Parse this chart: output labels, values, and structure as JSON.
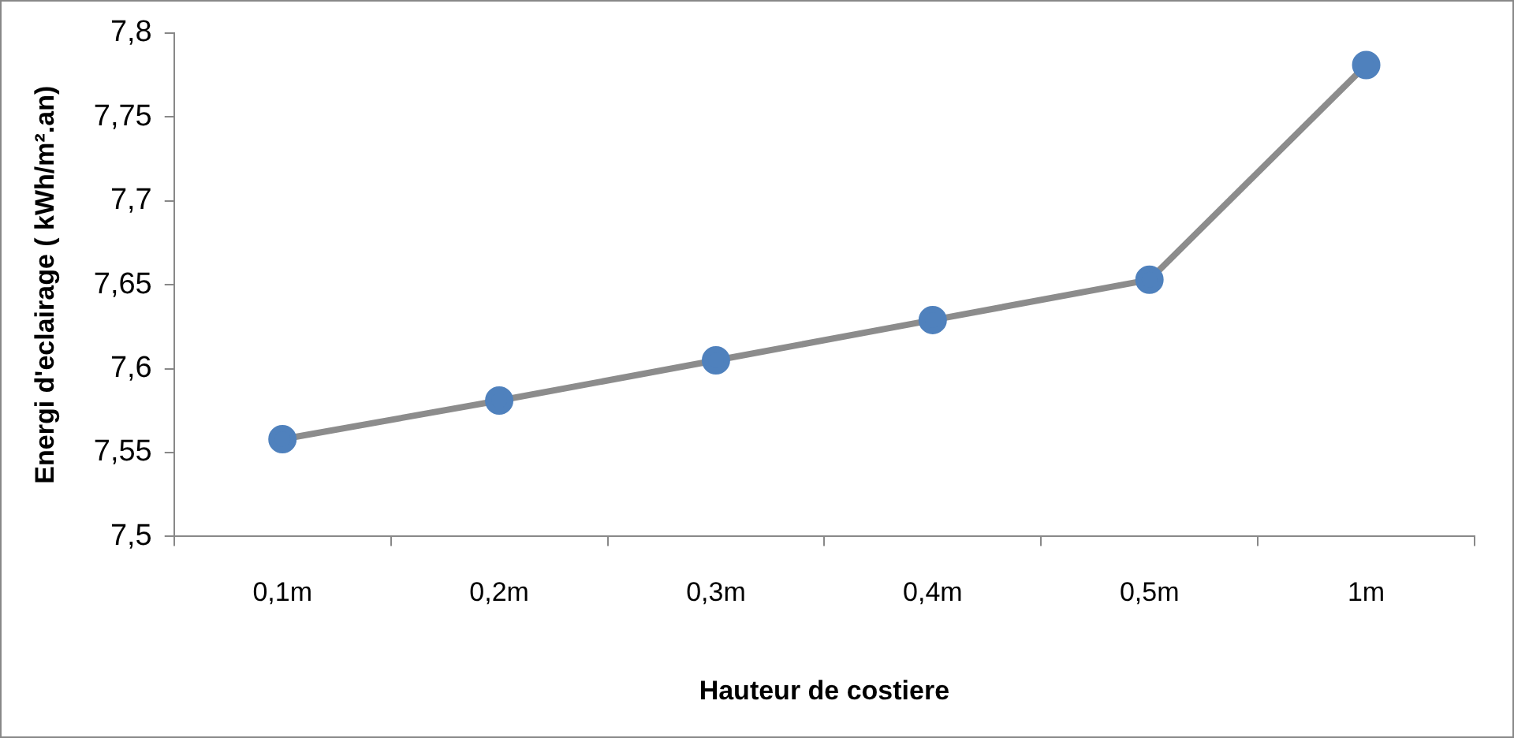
{
  "chart_data": {
    "type": "line",
    "xlabel": "Hauteur de costiere",
    "ylabel": "Energi d'eclairage ( kWh/m².an)",
    "categories": [
      "0,1m",
      "0,2m",
      "0,3m",
      "0,4m",
      "0,5m",
      "1m"
    ],
    "series": [
      {
        "color": "#4f81bd",
        "values": [
          7.558,
          7.581,
          7.605,
          7.629,
          7.653,
          7.781
        ]
      }
    ],
    "ylim": [
      7.5,
      7.8
    ],
    "yticks": [
      {
        "value": 7.5,
        "label": "7,5"
      },
      {
        "value": 7.55,
        "label": "7,55"
      },
      {
        "value": 7.6,
        "label": "7,6"
      },
      {
        "value": 7.65,
        "label": "7,65"
      },
      {
        "value": 7.7,
        "label": "7,7"
      },
      {
        "value": 7.75,
        "label": "7,75"
      },
      {
        "value": 7.8,
        "label": "7,8"
      }
    ],
    "grid": false,
    "legend": false,
    "marker": "circle",
    "line_style": "solid"
  }
}
